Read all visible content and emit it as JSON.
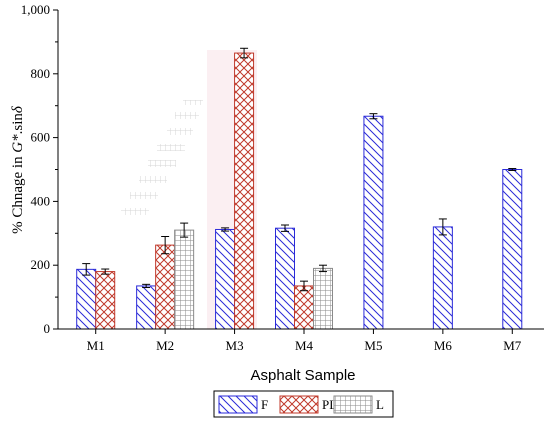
{
  "chart_data": {
    "type": "bar",
    "xlabel": "Asphalt Sample",
    "ylabel_prefix": "% Chnage in ",
    "ylabel_g": "G*",
    "ylabel_mid": ".sin",
    "ylabel_delta": "δ",
    "ylim": [
      0,
      1000
    ],
    "yticks": [
      0,
      200,
      400,
      600,
      800,
      1000
    ],
    "ytick_labels": [
      "0",
      "200",
      "400",
      "600",
      "800",
      "1,000"
    ],
    "grid": false,
    "legend_placement": "bottom-center",
    "categories": [
      "M1",
      "M2",
      "M3",
      "M4",
      "M5",
      "M6",
      "M7"
    ],
    "series": [
      {
        "name": "F",
        "color": "#2a2ad8",
        "pattern": "diagonal-hatch",
        "values": [
          187,
          135,
          312,
          316,
          667,
          320,
          500
        ],
        "errors": [
          18,
          5,
          5,
          10,
          8,
          25,
          3
        ]
      },
      {
        "name": "PL",
        "color": "#c0392b",
        "pattern": "cross-hatch",
        "values": [
          180,
          263,
          865,
          135,
          null,
          null,
          null
        ],
        "errors": [
          8,
          27,
          15,
          15,
          null,
          null,
          null
        ]
      },
      {
        "name": "L",
        "color": "#8a8a8a",
        "pattern": "grid",
        "values": [
          null,
          310,
          null,
          190,
          null,
          null,
          null
        ],
        "errors": [
          null,
          22,
          null,
          10,
          null,
          null,
          null
        ]
      }
    ]
  }
}
